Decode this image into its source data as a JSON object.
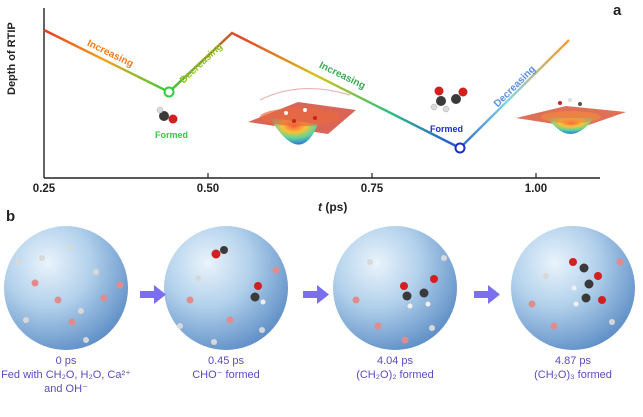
{
  "panel_a": {
    "label": "a",
    "y_axis_label": "Depth of RTIP",
    "x_axis_label_var": "t",
    "x_axis_label_unit": "(ps)",
    "x_ticks": [
      "0.25",
      "0.50",
      "0.75",
      "1.00"
    ],
    "segment_labels": {
      "seg1": "Increasing",
      "seg2": "Decreasing",
      "seg3": "Increasing",
      "seg4": "Decreasing"
    },
    "events": {
      "first": "Formed",
      "second": "Formed"
    },
    "colors": {
      "first_marker": "#2ecc40",
      "second_marker": "#1a2fc9"
    }
  },
  "panel_b": {
    "label": "b",
    "frames": [
      {
        "time": "0 ps",
        "desc": "Fed with CH₂O, H₂O, Ca²⁺ and OH⁻"
      },
      {
        "time": "0.45 ps",
        "desc": "CHO⁻ formed"
      },
      {
        "time": "4.04 ps",
        "desc": "(CH₂O)₂ formed"
      },
      {
        "time": "4.87 ps",
        "desc": "(CH₂O)₃ formed"
      }
    ],
    "arrow_color": "#7b6ff0"
  }
}
